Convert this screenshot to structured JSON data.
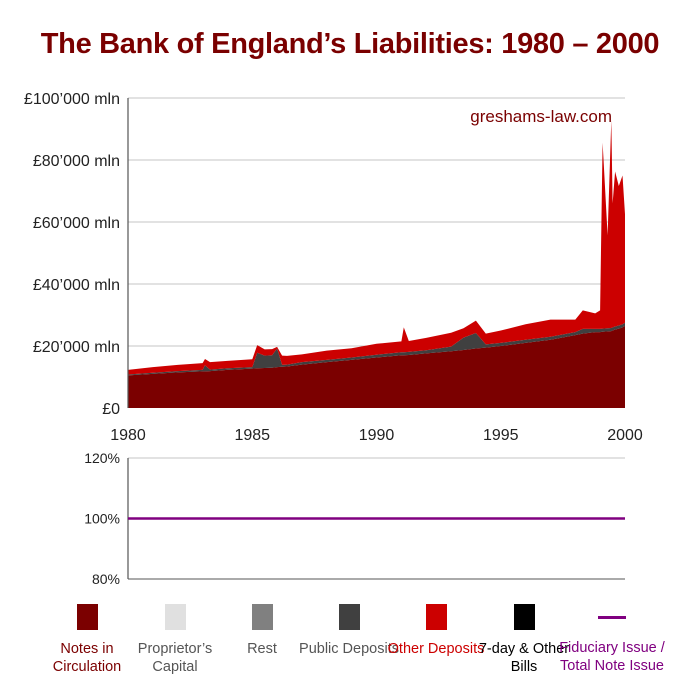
{
  "title": "The Bank of England’s Liabilities: 1980 – 2000",
  "watermark": "greshams-law.com",
  "chart_data": [
    {
      "type": "area",
      "stacked": true,
      "x_ticks": [
        "1980",
        "1985",
        "1990",
        "1995",
        "2000"
      ],
      "xlim": [
        1980,
        2000
      ],
      "y_ticks": [
        "£0",
        "£20’000 mln",
        "£40’000 mln",
        "£60’000 mln",
        "£80’000 mln",
        "£100’000 mln"
      ],
      "ylim": [
        0,
        100000
      ],
      "grid": true,
      "x": [
        1980,
        1981,
        1982,
        1983,
        1983.1,
        1983.3,
        1984,
        1985,
        1985.2,
        1985.5,
        1985.8,
        1986,
        1986.2,
        1986.4,
        1987,
        1988,
        1989,
        1990,
        1991,
        1991.1,
        1991.3,
        1992,
        1993,
        1993.5,
        1994,
        1994.4,
        1995,
        1996,
        1997,
        1998,
        1998.3,
        1998.8,
        1999,
        1999.1,
        1999.3,
        1999.45,
        1999.5,
        1999.6,
        1999.75,
        1999.9,
        2000
      ],
      "series": [
        {
          "name": "Notes in Circulation",
          "color": "#7b0000",
          "values": [
            10500,
            11000,
            11500,
            11800,
            11800,
            11900,
            12300,
            12700,
            12800,
            12900,
            13000,
            13200,
            13300,
            13400,
            14000,
            14800,
            15500,
            16300,
            17000,
            17000,
            17100,
            17600,
            18300,
            18700,
            19200,
            19500,
            20000,
            21000,
            22000,
            23500,
            24000,
            24500,
            24500,
            24600,
            24700,
            24800,
            25000,
            25300,
            25600,
            26000,
            26500
          ]
        },
        {
          "name": "Public Deposits",
          "color": "#404040",
          "values": [
            300,
            400,
            400,
            500,
            2000,
            500,
            500,
            500,
            5000,
            4000,
            4000,
            6000,
            600,
            600,
            800,
            700,
            800,
            900,
            1000,
            1000,
            1000,
            1000,
            1500,
            4000,
            5000,
            1000,
            1000,
            1000,
            1000,
            1000,
            1500,
            1000,
            1000,
            1000,
            1000,
            1000,
            1000,
            1000,
            1000,
            1000,
            1000
          ]
        },
        {
          "name": "Other Deposits",
          "color": "#cc0000",
          "values": [
            1500,
            1800,
            2000,
            2200,
            2000,
            2400,
            2400,
            2500,
            2500,
            2000,
            2000,
            500,
            3000,
            2800,
            2500,
            3000,
            3000,
            3500,
            3500,
            8000,
            3500,
            4000,
            4500,
            3000,
            4000,
            3500,
            4000,
            5000,
            5500,
            4000,
            6000,
            5000,
            6000,
            60000,
            30000,
            67000,
            40000,
            50000,
            45000,
            48000,
            35000
          ]
        }
      ]
    },
    {
      "type": "line",
      "y_ticks": [
        "80%",
        "100%",
        "120%"
      ],
      "ylim": [
        80,
        120
      ],
      "xlim": [
        1980,
        2000
      ],
      "grid": true,
      "series": [
        {
          "name": "Fiduciary Issue / Total Note Issue",
          "color": "#800080",
          "x": [
            1980,
            2000
          ],
          "values": [
            100,
            100
          ]
        }
      ]
    }
  ],
  "legend": [
    {
      "label": "Notes in Circulation",
      "color": "#7b0000",
      "text_color": "#7b0000",
      "kind": "swatch"
    },
    {
      "label": "Proprietor’s Capital",
      "color": "#e0e0e0",
      "text_color": "#555555",
      "kind": "swatch"
    },
    {
      "label": "Rest",
      "color": "#808080",
      "text_color": "#555555",
      "kind": "swatch"
    },
    {
      "label": "Public Deposits",
      "color": "#404040",
      "text_color": "#555555",
      "kind": "swatch"
    },
    {
      "label": "Other Deposits",
      "color": "#cc0000",
      "text_color": "#cc0000",
      "kind": "swatch"
    },
    {
      "label": "7-day & Other Bills",
      "color": "#000000",
      "text_color": "#000000",
      "kind": "swatch"
    },
    {
      "label": "Fiduciary Issue / Total Note Issue",
      "color": "#800080",
      "text_color": "#800080",
      "kind": "line"
    }
  ]
}
